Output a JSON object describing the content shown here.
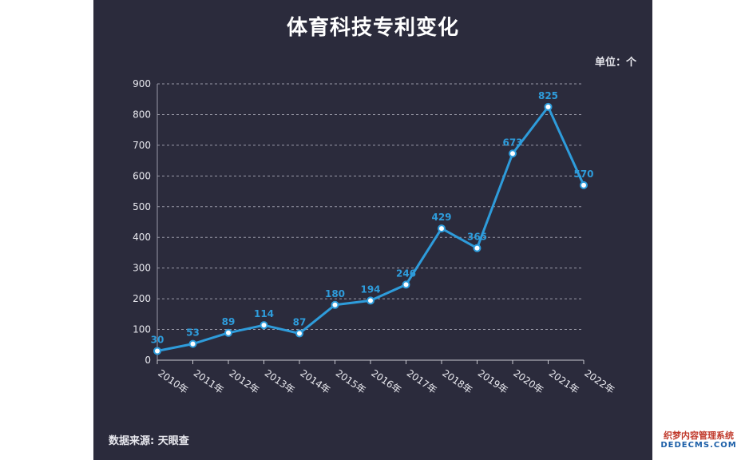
{
  "watermark": {
    "cn": "织梦内容管理系统",
    "en": "DEDECMS.COM"
  },
  "chart_data": {
    "type": "line",
    "title": "体育科技专利变化",
    "unit_label": "单位：个",
    "source": "数据来源: 天眼查",
    "categories": [
      "2010年",
      "2011年",
      "2012年",
      "2013年",
      "2014年",
      "2015年",
      "2016年",
      "2017年",
      "2018年",
      "2019年",
      "2020年",
      "2021年",
      "2022年"
    ],
    "values": [
      30,
      53,
      89,
      114,
      87,
      180,
      194,
      246,
      429,
      365,
      673,
      825,
      570
    ],
    "ylim": [
      0,
      900
    ],
    "yticks": [
      "0",
      "100",
      "200",
      "300",
      "400",
      "500",
      "600",
      "700",
      "800",
      "900"
    ],
    "grid": true,
    "colors": {
      "line": "#2e9cdb",
      "label": "#2e9cdb",
      "background": "#2b2b3c",
      "marker_fill": "#ffffff"
    }
  }
}
